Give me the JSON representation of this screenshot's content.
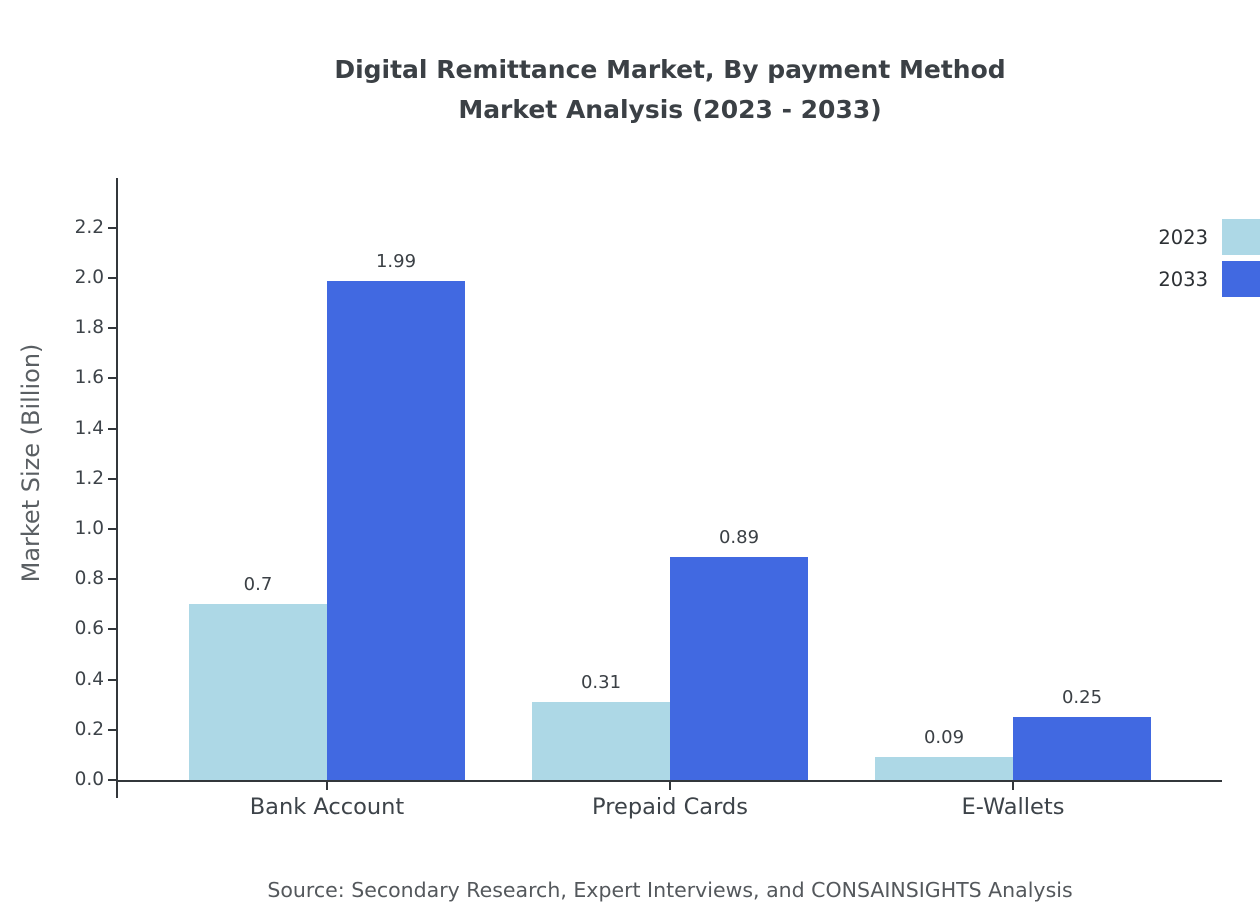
{
  "title": {
    "line1": "Digital Remittance Market, By payment Method",
    "line2": "Market Analysis (2023 - 2033)"
  },
  "source": "Source: Secondary Research, Expert Interviews, and CONSAINSIGHTS Analysis",
  "chart_data": {
    "type": "bar",
    "title": "Digital Remittance Market, By payment Method Market Analysis (2023 - 2033)",
    "xlabel": "",
    "ylabel": "Market Size (Billion)",
    "categories": [
      "Bank Account",
      "Prepaid Cards",
      "E-Wallets"
    ],
    "series": [
      {
        "name": "2023",
        "color": "#ADD8E6",
        "values": [
          0.7,
          0.31,
          0.09
        ]
      },
      {
        "name": "2033",
        "color": "#4169E1",
        "values": [
          1.99,
          0.89,
          0.25
        ]
      }
    ],
    "value_labels": [
      [
        "0.7",
        "0.31",
        "0.09"
      ],
      [
        "1.99",
        "0.89",
        "0.25"
      ]
    ],
    "ylim": [
      0,
      2.39
    ],
    "yticks": [
      0.0,
      0.2,
      0.4,
      0.6,
      0.8,
      1.0,
      1.2,
      1.4,
      1.6,
      1.8,
      2.0,
      2.2
    ],
    "grid": false,
    "legend_position": "top-right"
  }
}
